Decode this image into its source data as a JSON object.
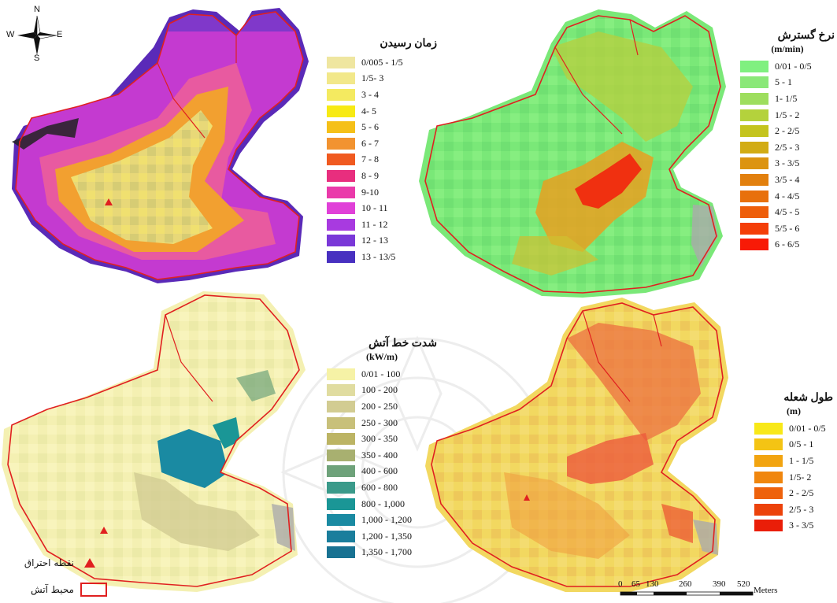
{
  "compass": {
    "n": "N",
    "s": "S",
    "e": "E",
    "w": "W"
  },
  "colors": {
    "boundary": "#e02020",
    "ignition": "#e02020"
  },
  "panels": {
    "arrival_time": {
      "title": "زمان رسیدن",
      "classes": [
        {
          "label": "0/005 - 1/5",
          "color": "#efe6a0"
        },
        {
          "label": "1/5- 3",
          "color": "#f2e88a"
        },
        {
          "label": "3 - 4",
          "color": "#f4ea60"
        },
        {
          "label": "4- 5",
          "color": "#f7ea14"
        },
        {
          "label": "5 - 6",
          "color": "#f5c018"
        },
        {
          "label": "6 - 7",
          "color": "#f29330"
        },
        {
          "label": "7 - 8",
          "color": "#f05a20"
        },
        {
          "label": "8 - 9",
          "color": "#e82e7e"
        },
        {
          "label": "9-10",
          "color": "#ea3aaa"
        },
        {
          "label": "10 - 11",
          "color": "#e040d8"
        },
        {
          "label": "11 - 12",
          "color": "#a83ae0"
        },
        {
          "label": "12 - 13",
          "color": "#7a38d8"
        },
        {
          "label": "13 - 13/5",
          "color": "#4830c0"
        }
      ]
    },
    "spread_rate": {
      "title": "نرخ گسترش",
      "unit": "(m/min)",
      "classes": [
        {
          "label": "0/01 - 0/5",
          "color": "#80f080"
        },
        {
          "label": "5 - 1",
          "color": "#8ae878"
        },
        {
          "label": "1- 1/5",
          "color": "#9ede5e"
        },
        {
          "label": "1/5 - 2",
          "color": "#b4d23c"
        },
        {
          "label": "2 - 2/5",
          "color": "#c4c41e"
        },
        {
          "label": "2/5 - 3",
          "color": "#d2ac14"
        },
        {
          "label": "3 - 3/5",
          "color": "#dc9410"
        },
        {
          "label": "3/5 - 4",
          "color": "#e2800e"
        },
        {
          "label": "4 - 4/5",
          "color": "#e8700c"
        },
        {
          "label": "4/5 - 5",
          "color": "#ee5e0a"
        },
        {
          "label": "5/5 - 6",
          "color": "#f43e08"
        },
        {
          "label": "6 - 6/5",
          "color": "#f81a06"
        }
      ]
    },
    "fireline_intensity": {
      "title": "شدت خط آتش",
      "unit": "(kW/m)",
      "classes": [
        {
          "label": "0/01 - 100",
          "color": "#f6f2a6"
        },
        {
          "label": "100 - 200",
          "color": "#e0dca0"
        },
        {
          "label": "200 - 250",
          "color": "#d2cc92"
        },
        {
          "label": "250 - 300",
          "color": "#c8c07a"
        },
        {
          "label": "300 - 350",
          "color": "#bcb464"
        },
        {
          "label": "350 - 400",
          "color": "#a8b070"
        },
        {
          "label": "400 - 600",
          "color": "#6ea27a"
        },
        {
          "label": "600 - 800",
          "color": "#3a9a8a"
        },
        {
          "label": "800 - 1,000",
          "color": "#1a9696"
        },
        {
          "label": "1,000 - 1,200",
          "color": "#1a8aa2"
        },
        {
          "label": "1,200 - 1,350",
          "color": "#1a7e9c"
        },
        {
          "label": "1,350 - 1,700",
          "color": "#187292"
        }
      ]
    },
    "flame_length": {
      "title": "طول شعله",
      "unit": "(m)",
      "classes": [
        {
          "label": "0/01 - 0/5",
          "color": "#f8e818"
        },
        {
          "label": "0/5 - 1",
          "color": "#f4c414"
        },
        {
          "label": "1 - 1/5",
          "color": "#f2a410"
        },
        {
          "label": "1/5- 2",
          "color": "#f0860e"
        },
        {
          "label": "2 - 2/5",
          "color": "#ee620c"
        },
        {
          "label": "2/5 - 3",
          "color": "#ec420a"
        },
        {
          "label": "3 - 3/5",
          "color": "#ea1e08"
        }
      ]
    }
  },
  "bottom_legend": {
    "ignition_label": "نقطه احتراق",
    "perimeter_label": "محیط آتش"
  },
  "scale_bar": {
    "ticks": [
      "0",
      "65",
      "130",
      "260",
      "390",
      "520"
    ],
    "unit": "Meters"
  }
}
